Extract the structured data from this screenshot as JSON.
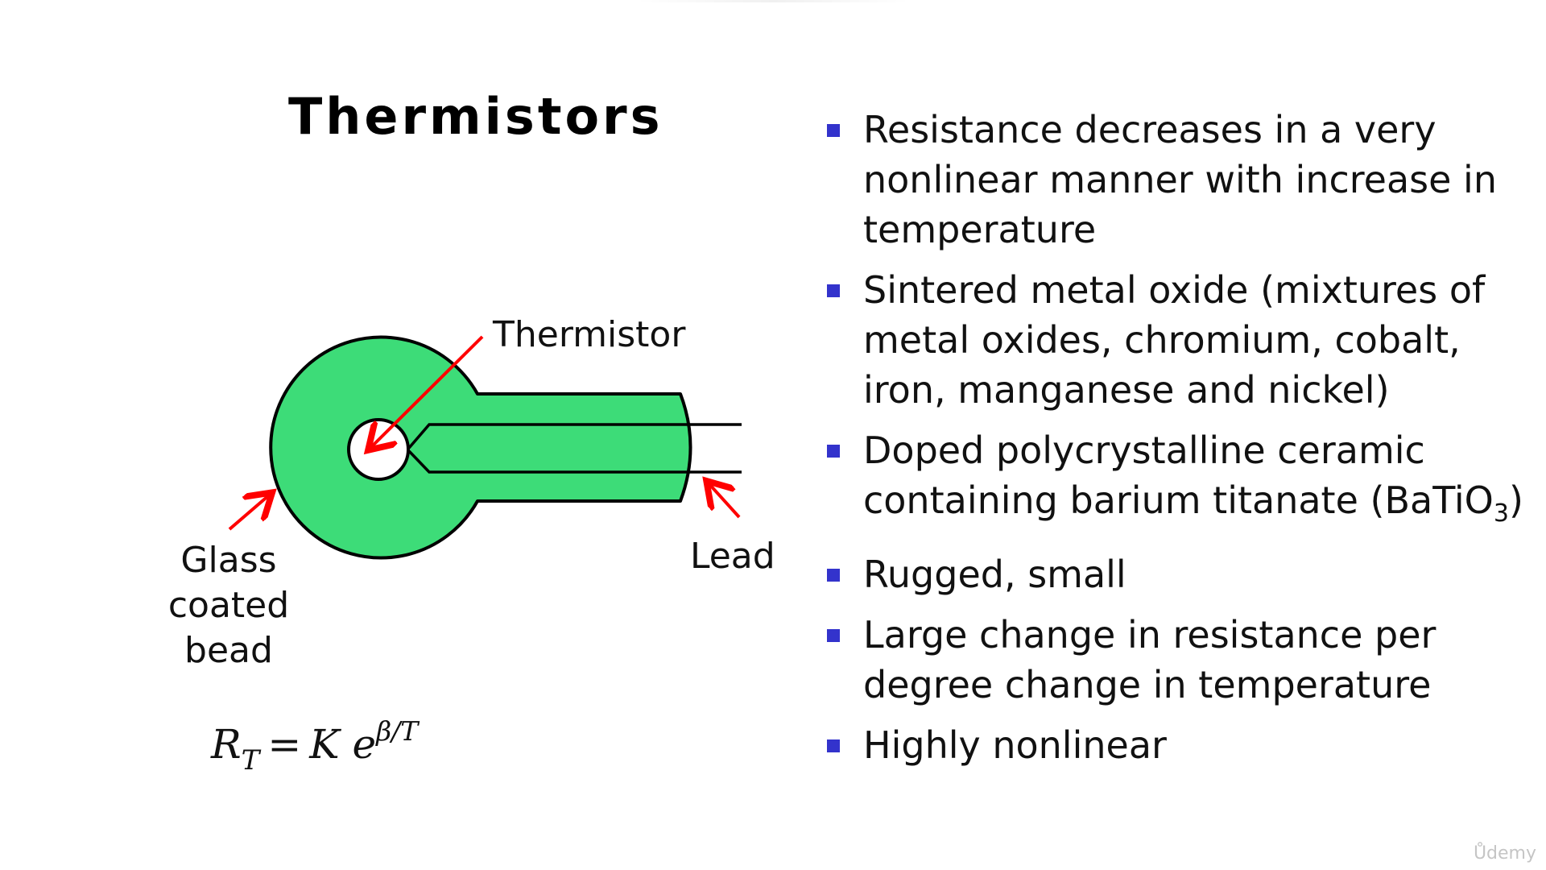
{
  "slide": {
    "title": "Thermistors",
    "diagram": {
      "labels": {
        "thermistor": "Thermistor",
        "glass_line1": "Glass",
        "glass_line2": "coated",
        "glass_line3": "bead",
        "lead": "Lead"
      },
      "colors": {
        "bead_fill": "#3ddc78",
        "arrow": "#ff0000",
        "outline": "#000000"
      }
    },
    "formula": {
      "lhs": "R",
      "lhs_sub": "T",
      "equals": "=",
      "rhs": "K e",
      "rhs_sup": "β/T"
    },
    "bullets": [
      {
        "text": "Resistance decreases in a very nonlinear manner with increase in temperature"
      },
      {
        "text": "Sintered metal oxide (mixtures of metal oxides, chromium, cobalt, iron, manganese and nickel)"
      },
      {
        "text_before": "Doped polycrystalline ceramic containing barium titanate (BaTiO",
        "sub": "3",
        "text_after": ")"
      },
      {
        "text": "Rugged, small"
      },
      {
        "text": "Large change in resistance per degree change in temperature"
      },
      {
        "text": "Highly nonlinear"
      }
    ],
    "bullet_color": "#3333cc",
    "watermark": "Ůdemy"
  }
}
